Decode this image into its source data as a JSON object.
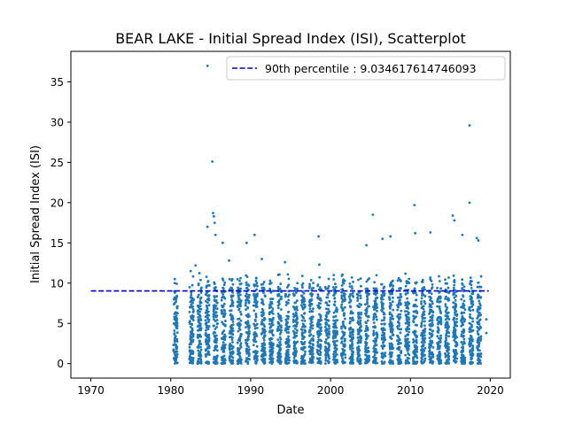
{
  "chart_data": {
    "type": "scatter",
    "title": "BEAR LAKE - Initial Spread Index (ISI), Scatterplot",
    "xlabel": "Date",
    "ylabel": "Initial Spread Index (ISI)",
    "xlim": [
      1967.5,
      2022.5
    ],
    "ylim": [
      -1.8,
      38.8
    ],
    "x_ticks": [
      1970,
      1980,
      1990,
      2000,
      2010,
      2020
    ],
    "y_ticks": [
      0,
      5,
      10,
      15,
      20,
      25,
      30,
      35
    ],
    "grid": false,
    "legend": {
      "position": "top-right",
      "entries": [
        "90th percentile : 9.034617614746093"
      ]
    },
    "reference_line": {
      "name": "90th percentile : 9.034617614746093",
      "y": 9.034617614746093,
      "x_start": 1970,
      "x_end": 2019.8,
      "style": "dashed",
      "color": "#0000cc"
    },
    "series": [
      {
        "marker_color": "#1f77b4",
        "seasons_start": [
          1980.35,
          1982.35,
          1983.35,
          1984.35,
          1985.35,
          1986.35,
          1987.35,
          1988.35,
          1989.35,
          1990.35,
          1991.35,
          1992.35,
          1993.35,
          1994.35,
          1995.35,
          1996.35,
          1997.35,
          1998.35,
          1999.35,
          2000.35,
          2001.35,
          2002.35,
          2003.35,
          2004.35,
          2005.35,
          2006.35,
          2007.35,
          2008.35,
          2009.35,
          2010.35,
          2011.35,
          2012.35,
          2013.35,
          2014.35,
          2015.35,
          2016.35,
          2017.35,
          2018.35
        ],
        "season_length_years": 0.5,
        "typical_range": [
          0,
          10
        ],
        "outliers": [
          {
            "x": 1980.5,
            "y": 10.5
          },
          {
            "x": 1982.5,
            "y": 11.5
          },
          {
            "x": 1983.1,
            "y": 12.2
          },
          {
            "x": 1984.6,
            "y": 37.0
          },
          {
            "x": 1984.6,
            "y": 17.0
          },
          {
            "x": 1985.2,
            "y": 25.1
          },
          {
            "x": 1985.3,
            "y": 18.7
          },
          {
            "x": 1985.4,
            "y": 18.3
          },
          {
            "x": 1985.5,
            "y": 17.5
          },
          {
            "x": 1985.6,
            "y": 16.0
          },
          {
            "x": 1986.5,
            "y": 15.0
          },
          {
            "x": 1987.3,
            "y": 12.8
          },
          {
            "x": 1989.5,
            "y": 15.0
          },
          {
            "x": 1990.5,
            "y": 16.0
          },
          {
            "x": 1991.4,
            "y": 13.0
          },
          {
            "x": 1994.3,
            "y": 12.6
          },
          {
            "x": 1998.5,
            "y": 15.8
          },
          {
            "x": 1998.6,
            "y": 12.3
          },
          {
            "x": 2000.4,
            "y": 11.0
          },
          {
            "x": 2004.5,
            "y": 14.7
          },
          {
            "x": 2005.3,
            "y": 18.5
          },
          {
            "x": 2006.5,
            "y": 15.5
          },
          {
            "x": 2007.5,
            "y": 15.8
          },
          {
            "x": 2010.5,
            "y": 19.7
          },
          {
            "x": 2010.6,
            "y": 16.2
          },
          {
            "x": 2012.5,
            "y": 16.3
          },
          {
            "x": 2015.3,
            "y": 18.4
          },
          {
            "x": 2015.5,
            "y": 17.8
          },
          {
            "x": 2016.5,
            "y": 16.0
          },
          {
            "x": 2017.4,
            "y": 29.6
          },
          {
            "x": 2017.4,
            "y": 20.0
          },
          {
            "x": 2018.3,
            "y": 15.6
          },
          {
            "x": 2018.5,
            "y": 15.3
          },
          {
            "x": 2019.5,
            "y": 5.5
          },
          {
            "x": 2019.5,
            "y": 3.8
          }
        ]
      }
    ]
  }
}
